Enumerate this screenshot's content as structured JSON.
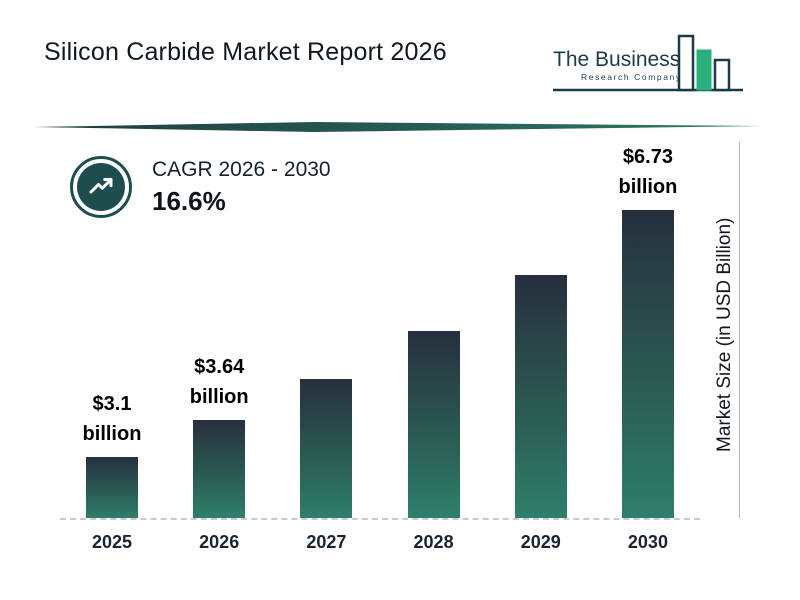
{
  "page": {
    "title": "Silicon Carbide Market Report 2026"
  },
  "logo": {
    "name_line1": "The Business",
    "name_line2": "Research Company"
  },
  "cagr": {
    "label": "CAGR 2026 - 2030",
    "value": "16.6%"
  },
  "y_axis": {
    "label": "Market Size (in USD Billion)"
  },
  "chart_data": {
    "type": "bar",
    "title": "Silicon Carbide Market Report 2026",
    "categories": [
      "2025",
      "2026",
      "2027",
      "2028",
      "2029",
      "2030"
    ],
    "values": [
      3.1,
      3.64,
      4.24,
      4.95,
      5.77,
      6.73
    ],
    "bar_labels": [
      "$3.1 billion",
      "$3.64 billion",
      "",
      "",
      "",
      "$6.73 billion"
    ],
    "ylabel": "Market Size (in USD Billion)",
    "xlabel": "",
    "grid": false,
    "legend_position": "none",
    "annotations": [
      "CAGR 2026 - 2030: 16.6%"
    ],
    "colors": {
      "bar_gradient_top": "#272f3e",
      "bar_gradient_bottom": "#2e7f6a",
      "accent_teal": "#1d4e4d"
    }
  }
}
